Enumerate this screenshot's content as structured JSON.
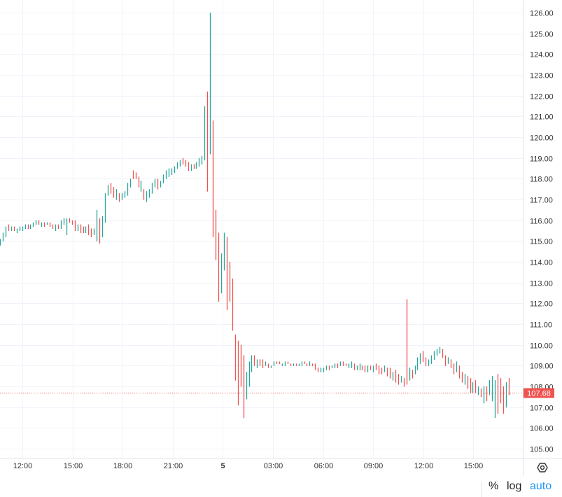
{
  "chart_data": {
    "type": "ohlc-range-bars",
    "bar_interval_minutes": 10,
    "x_start": "10:40",
    "ylim": [
      104.6,
      126.6
    ],
    "y_ticks": [
      "105.00",
      "106.00",
      "107.00",
      "108.00",
      "109.00",
      "110.00",
      "111.00",
      "112.00",
      "113.00",
      "114.00",
      "115.00",
      "116.00",
      "117.00",
      "118.00",
      "119.00",
      "120.00",
      "121.00",
      "122.00",
      "123.00",
      "124.00",
      "125.00",
      "126.00"
    ],
    "x_ticks": [
      "12:00",
      "15:00",
      "18:00",
      "21:00",
      "5",
      "03:00",
      "06:00",
      "09:00",
      "12:00",
      "15:00"
    ],
    "grid": true,
    "last_price": 107.68,
    "last_price_label": "107.68",
    "colors": {
      "up": "#26a69a",
      "down": "#ef5350",
      "grid": "#f0f3fa",
      "axis": "#e0e3eb"
    },
    "bar_fields": [
      "high",
      "low",
      "up"
    ],
    "bars": [
      [
        115.1,
        114.8,
        1
      ],
      [
        115.4,
        115.0,
        1
      ],
      [
        115.7,
        115.2,
        1
      ],
      [
        115.8,
        115.5,
        0
      ],
      [
        115.7,
        115.5,
        1
      ],
      [
        115.7,
        115.5,
        0
      ],
      [
        115.6,
        115.4,
        1
      ],
      [
        115.7,
        115.5,
        1
      ],
      [
        115.7,
        115.5,
        1
      ],
      [
        115.8,
        115.6,
        1
      ],
      [
        115.8,
        115.6,
        0
      ],
      [
        115.8,
        115.6,
        1
      ],
      [
        115.9,
        115.7,
        1
      ],
      [
        116.0,
        115.8,
        1
      ],
      [
        116.0,
        115.8,
        0
      ],
      [
        115.9,
        115.7,
        1
      ],
      [
        115.9,
        115.7,
        0
      ],
      [
        115.9,
        115.8,
        1
      ],
      [
        115.9,
        115.7,
        0
      ],
      [
        115.8,
        115.6,
        0
      ],
      [
        115.8,
        115.5,
        1
      ],
      [
        115.8,
        115.6,
        0
      ],
      [
        116.0,
        115.6,
        1
      ],
      [
        116.1,
        115.8,
        1
      ],
      [
        116.1,
        115.3,
        1
      ],
      [
        116.1,
        115.9,
        0
      ],
      [
        116.0,
        115.8,
        0
      ],
      [
        116.0,
        115.5,
        0
      ],
      [
        115.8,
        115.5,
        1
      ],
      [
        115.8,
        115.4,
        0
      ],
      [
        115.7,
        115.4,
        0
      ],
      [
        115.7,
        115.4,
        1
      ],
      [
        115.8,
        115.3,
        0
      ],
      [
        115.6,
        115.2,
        0
      ],
      [
        115.6,
        115.3,
        1
      ],
      [
        116.5,
        115.0,
        1
      ],
      [
        116.1,
        114.9,
        0
      ],
      [
        116.2,
        115.2,
        1
      ],
      [
        117.3,
        115.9,
        1
      ],
      [
        117.7,
        117.2,
        1
      ],
      [
        117.8,
        117.3,
        0
      ],
      [
        117.6,
        117.1,
        0
      ],
      [
        117.5,
        117.0,
        1
      ],
      [
        117.3,
        116.9,
        0
      ],
      [
        117.3,
        117.0,
        1
      ],
      [
        117.4,
        117.1,
        1
      ],
      [
        117.8,
        117.2,
        1
      ],
      [
        118.0,
        117.6,
        1
      ],
      [
        118.4,
        118.0,
        0
      ],
      [
        118.3,
        118.0,
        0
      ],
      [
        118.1,
        117.6,
        0
      ],
      [
        117.9,
        117.4,
        1
      ],
      [
        117.5,
        117.0,
        0
      ],
      [
        117.4,
        116.9,
        1
      ],
      [
        117.5,
        117.1,
        1
      ],
      [
        117.8,
        117.3,
        1
      ],
      [
        118.0,
        117.6,
        1
      ],
      [
        118.0,
        117.5,
        0
      ],
      [
        117.9,
        117.6,
        1
      ],
      [
        118.2,
        117.8,
        1
      ],
      [
        118.4,
        118.0,
        1
      ],
      [
        118.5,
        118.1,
        1
      ],
      [
        118.5,
        118.2,
        1
      ],
      [
        118.6,
        118.3,
        1
      ],
      [
        118.8,
        118.5,
        1
      ],
      [
        118.9,
        118.6,
        1
      ],
      [
        119.0,
        118.7,
        0
      ],
      [
        118.9,
        118.6,
        0
      ],
      [
        118.8,
        118.4,
        0
      ],
      [
        118.7,
        118.4,
        1
      ],
      [
        118.7,
        118.5,
        0
      ],
      [
        118.8,
        118.5,
        1
      ],
      [
        119.0,
        118.6,
        1
      ],
      [
        119.1,
        118.7,
        1
      ],
      [
        121.5,
        118.9,
        1
      ],
      [
        122.2,
        117.4,
        0
      ],
      [
        126.0,
        119.2,
        1
      ],
      [
        120.8,
        115.2,
        0
      ],
      [
        116.5,
        114.1,
        0
      ],
      [
        115.4,
        112.1,
        0
      ],
      [
        114.4,
        112.5,
        1
      ],
      [
        115.4,
        113.6,
        1
      ],
      [
        115.2,
        111.7,
        0
      ],
      [
        114.0,
        112.1,
        0
      ],
      [
        113.2,
        110.7,
        0
      ],
      [
        110.5,
        108.3,
        0
      ],
      [
        110.2,
        107.1,
        0
      ],
      [
        110.0,
        108.0,
        0
      ],
      [
        109.5,
        106.5,
        0
      ],
      [
        108.7,
        107.4,
        1
      ],
      [
        109.2,
        108.0,
        1
      ],
      [
        109.5,
        108.7,
        1
      ],
      [
        109.5,
        109.0,
        0
      ],
      [
        109.3,
        108.9,
        1
      ],
      [
        109.3,
        109.0,
        0
      ],
      [
        109.3,
        108.9,
        0
      ],
      [
        109.2,
        109.0,
        1
      ],
      [
        109.1,
        108.9,
        0
      ],
      [
        109.0,
        108.9,
        1
      ],
      [
        109.2,
        109.0,
        1
      ],
      [
        109.2,
        109.1,
        0
      ],
      [
        109.2,
        109.1,
        0
      ],
      [
        109.1,
        109.0,
        1
      ],
      [
        109.2,
        109.0,
        1
      ],
      [
        109.2,
        109.1,
        0
      ],
      [
        109.1,
        109.0,
        0
      ],
      [
        109.1,
        109.0,
        1
      ],
      [
        109.1,
        109.0,
        0
      ],
      [
        109.1,
        109.0,
        1
      ],
      [
        109.2,
        109.0,
        1
      ],
      [
        109.2,
        109.1,
        0
      ],
      [
        109.1,
        109.0,
        0
      ],
      [
        109.2,
        109.0,
        1
      ],
      [
        109.1,
        109.0,
        0
      ],
      [
        109.1,
        108.8,
        0
      ],
      [
        108.9,
        108.7,
        0
      ],
      [
        108.9,
        108.7,
        1
      ],
      [
        108.9,
        108.7,
        1
      ],
      [
        109.0,
        108.8,
        1
      ],
      [
        109.0,
        108.8,
        0
      ],
      [
        109.0,
        108.9,
        1
      ],
      [
        109.1,
        108.9,
        1
      ],
      [
        109.1,
        108.9,
        0
      ],
      [
        109.2,
        109.0,
        1
      ],
      [
        109.2,
        109.0,
        0
      ],
      [
        109.1,
        109.0,
        0
      ],
      [
        109.1,
        108.9,
        1
      ],
      [
        109.2,
        108.9,
        1
      ],
      [
        109.1,
        108.8,
        0
      ],
      [
        109.0,
        108.8,
        1
      ],
      [
        109.1,
        108.8,
        1
      ],
      [
        109.0,
        108.8,
        0
      ],
      [
        109.0,
        108.7,
        0
      ],
      [
        109.0,
        108.7,
        1
      ],
      [
        109.0,
        108.8,
        0
      ],
      [
        109.0,
        108.7,
        1
      ],
      [
        109.1,
        108.8,
        0
      ],
      [
        109.0,
        108.6,
        0
      ],
      [
        108.9,
        108.6,
        0
      ],
      [
        109.0,
        108.7,
        1
      ],
      [
        108.9,
        108.5,
        0
      ],
      [
        108.9,
        108.4,
        0
      ],
      [
        108.7,
        108.3,
        1
      ],
      [
        108.8,
        108.2,
        0
      ],
      [
        108.6,
        108.1,
        0
      ],
      [
        108.5,
        108.2,
        1
      ],
      [
        108.4,
        108.0,
        0
      ],
      [
        112.2,
        108.1,
        0
      ],
      [
        108.9,
        108.3,
        1
      ],
      [
        108.8,
        108.4,
        0
      ],
      [
        109.0,
        108.6,
        1
      ],
      [
        109.4,
        108.8,
        1
      ],
      [
        109.6,
        109.1,
        1
      ],
      [
        109.7,
        109.2,
        0
      ],
      [
        109.4,
        109.0,
        0
      ],
      [
        109.3,
        109.0,
        1
      ],
      [
        109.5,
        109.1,
        1
      ],
      [
        109.7,
        109.3,
        1
      ],
      [
        109.8,
        109.5,
        1
      ],
      [
        109.9,
        109.6,
        1
      ],
      [
        109.8,
        109.4,
        0
      ],
      [
        109.5,
        109.0,
        0
      ],
      [
        109.4,
        109.1,
        1
      ],
      [
        109.3,
        108.9,
        0
      ],
      [
        109.1,
        108.6,
        0
      ],
      [
        109.2,
        108.7,
        1
      ],
      [
        109.0,
        108.4,
        0
      ],
      [
        108.7,
        108.2,
        0
      ],
      [
        108.6,
        108.1,
        1
      ],
      [
        108.5,
        107.9,
        0
      ],
      [
        108.4,
        107.7,
        0
      ],
      [
        108.2,
        107.7,
        1
      ],
      [
        108.3,
        107.7,
        0
      ],
      [
        108.0,
        107.6,
        1
      ],
      [
        107.9,
        107.5,
        0
      ],
      [
        108.0,
        107.2,
        1
      ],
      [
        108.0,
        107.3,
        0
      ],
      [
        108.3,
        107.6,
        1
      ],
      [
        108.5,
        107.3,
        1
      ],
      [
        108.3,
        106.5,
        1
      ],
      [
        108.6,
        106.7,
        0
      ],
      [
        108.4,
        107.2,
        0
      ],
      [
        108.0,
        106.7,
        0
      ],
      [
        108.2,
        107.0,
        1
      ],
      [
        108.4,
        107.6,
        0
      ]
    ]
  },
  "controls": {
    "settings_icon": "gear-icon",
    "percent_label": "%",
    "log_label": "log",
    "auto_label": "auto",
    "auto_color": "#2196f3"
  }
}
